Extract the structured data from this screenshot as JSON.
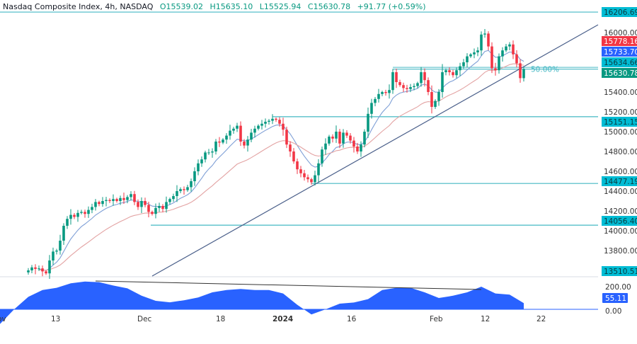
{
  "header": {
    "symbol": "Nasdaq Composite Index, 4h, NASDAQ",
    "open": "O15539.02",
    "high": "H15635.10",
    "low": "L15525.94",
    "close": "C15630.78",
    "change": "+91.77 (+0.59%)"
  },
  "colors": {
    "up": "#089981",
    "down": "#f23645",
    "fast_ma": "#7e9fd6",
    "slow_ma": "#e3a3a3",
    "level": "#45b8c4",
    "label_bg": "#00bcd4",
    "oscillator": "#2962ff",
    "trendline": "#4a5f8a"
  },
  "chart_data": {
    "type": "candlestick",
    "title": "Nasdaq Composite Index, 4h, NASDAQ",
    "ylim": [
      13510,
      16230
    ],
    "x_tick_labels": [
      "ov",
      "13",
      "Dec",
      "18",
      "2024",
      "16",
      "Feb",
      "12",
      "22"
    ],
    "y_tick_labels": [
      "16000.00",
      "15400.00",
      "15200.00",
      "15000.00",
      "14800.00",
      "14600.00",
      "14400.00",
      "14200.00",
      "14000.00",
      "13800.00"
    ],
    "first_open": 13580,
    "closes": [
      13600,
      13630,
      13615,
      13620,
      13590,
      13570,
      13700,
      13790,
      13800,
      13900,
      14050,
      14120,
      14160,
      14140,
      14180,
      14190,
      14170,
      14210,
      14240,
      14290,
      14270,
      14300,
      14310,
      14300,
      14320,
      14300,
      14330,
      14310,
      14340,
      14370,
      14290,
      14240,
      14300,
      14260,
      14190,
      14170,
      14230,
      14250,
      14220,
      14290,
      14320,
      14350,
      14400,
      14420,
      14410,
      14440,
      14500,
      14600,
      14680,
      14720,
      14790,
      14790,
      14800,
      14900,
      14890,
      14920,
      14960,
      15010,
      15030,
      15060,
      14900,
      14860,
      14920,
      14990,
      15030,
      15060,
      15080,
      15100,
      15110,
      15130,
      15120,
      15080,
      15020,
      14870,
      14800,
      14700,
      14620,
      14580,
      14540,
      14520,
      14490,
      14560,
      14680,
      14820,
      14880,
      14950,
      14930,
      15000,
      14880,
      14990,
      14960,
      14910,
      14850,
      14800,
      14870,
      15000,
      15180,
      15290,
      15330,
      15380,
      15400,
      15390,
      15420,
      15600,
      15500,
      15470,
      15440,
      15430,
      15450,
      15460,
      15490,
      15600,
      15520,
      15400,
      15250,
      15310,
      15400,
      15600,
      15620,
      15600,
      15570,
      15620,
      15660,
      15700,
      15760,
      15780,
      15800,
      15820,
      15980,
      15990,
      15860,
      15640,
      15620,
      15760,
      15820,
      15860,
      15880,
      15780,
      15690,
      15540,
      15630.78
    ],
    "levels": [
      {
        "value": 16206.69,
        "label": "16206.69"
      },
      {
        "value": 15630.78,
        "label": "50.00%"
      },
      {
        "value": 15151.15,
        "label": "15151.15"
      },
      {
        "value": 14477.19,
        "label": "14477.19"
      },
      {
        "value": 14056.4,
        "label": "14056.40"
      },
      {
        "value": 13510.51,
        "label": "13510.51"
      }
    ],
    "price_labels": [
      {
        "text": "16206.69",
        "color": "#00bcd4"
      },
      {
        "text": "15778.16",
        "color": "#f23645"
      },
      {
        "text": "15733.70",
        "color": "#2962ff"
      },
      {
        "text": "15634.66",
        "color": "#00bcd4"
      },
      {
        "text": "15630.78",
        "color": "#089981"
      },
      {
        "text": "15151.15",
        "color": "#00bcd4"
      },
      {
        "text": "14477.19",
        "color": "#00bcd4"
      },
      {
        "text": "14056.40",
        "color": "#00bcd4"
      },
      {
        "text": "13510.51",
        "color": "#00bcd4"
      }
    ],
    "fib_label": "50.00%",
    "oscillator": {
      "values": [
        -130,
        0,
        110,
        170,
        190,
        230,
        245,
        240,
        210,
        185,
        120,
        75,
        62,
        80,
        105,
        150,
        170,
        180,
        170,
        170,
        140,
        40,
        -45,
        0,
        50,
        60,
        90,
        170,
        190,
        190,
        150,
        100,
        120,
        150,
        200,
        140,
        130,
        55.11
      ],
      "y_tick_labels": [
        "200.00",
        "0.00"
      ],
      "last_label": "55.11"
    }
  }
}
